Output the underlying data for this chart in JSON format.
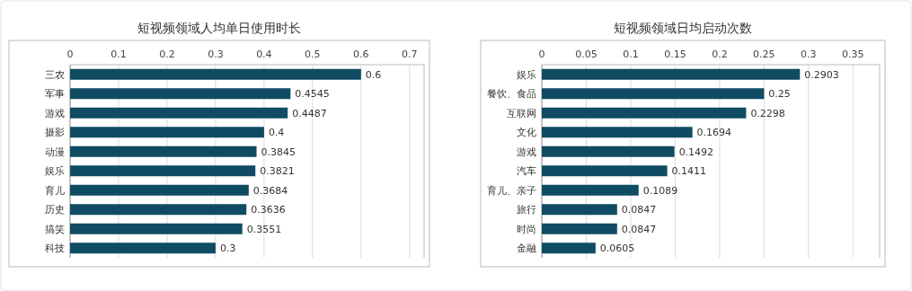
{
  "chart_data": [
    {
      "type": "bar",
      "orientation": "horizontal",
      "title": "短视频领域人均单日使用时长",
      "categories": [
        "三农",
        "军事",
        "游戏",
        "摄影",
        "动漫",
        "娱乐",
        "育儿",
        "历史",
        "搞笑",
        "科技"
      ],
      "values": [
        0.6,
        0.4545,
        0.4487,
        0.4,
        0.3845,
        0.3821,
        0.3684,
        0.3636,
        0.3551,
        0.3
      ],
      "color": "#0f4c63",
      "xlim": [
        0,
        0.73
      ],
      "xticks": [
        0,
        0.1,
        0.2,
        0.3,
        0.4,
        0.5,
        0.6,
        0.7
      ],
      "grid": "x",
      "data_labels": true
    },
    {
      "type": "bar",
      "orientation": "horizontal",
      "title": "短视频领域日均启动次数",
      "categories": [
        "娱乐",
        "餐饮、食品",
        "互联网",
        "文化",
        "游戏",
        "汽车",
        "育儿、亲子",
        "旅行",
        "时尚",
        "金融"
      ],
      "values": [
        0.2903,
        0.25,
        0.2298,
        0.1694,
        0.1492,
        0.1411,
        0.1089,
        0.0847,
        0.0847,
        0.0605
      ],
      "color": "#0f4c63",
      "xlim": [
        0,
        0.38
      ],
      "xticks": [
        0,
        0.05,
        0.1,
        0.15,
        0.2,
        0.25,
        0.3,
        0.35
      ],
      "grid": "x",
      "data_labels": true
    }
  ]
}
